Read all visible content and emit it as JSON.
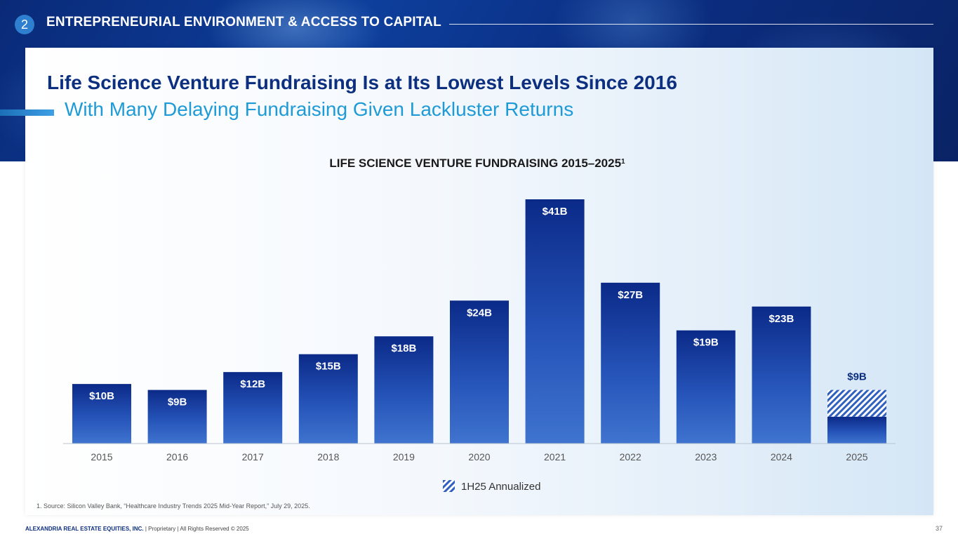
{
  "header": {
    "section_number": "2",
    "section_title": "ENTREPRENEURIAL ENVIRONMENT & ACCESS TO CAPITAL"
  },
  "slide": {
    "title": "Life Science Venture Fundraising Is at Its Lowest Levels Since 2016",
    "subtitle": "With Many Delaying Fundraising Given Lackluster Returns"
  },
  "chart_data": {
    "type": "bar",
    "title": "LIFE SCIENCE VENTURE FUNDRAISING 2015–2025",
    "title_superscript": "1",
    "categories": [
      "2015",
      "2016",
      "2017",
      "2018",
      "2019",
      "2020",
      "2021",
      "2022",
      "2023",
      "2024",
      "2025"
    ],
    "values": [
      10,
      9,
      12,
      15,
      18,
      24,
      41,
      27,
      19,
      23,
      9
    ],
    "actual_values": [
      10,
      9,
      12,
      15,
      18,
      24,
      41,
      27,
      19,
      23,
      4.5
    ],
    "labels": [
      "$10B",
      "$9B",
      "$12B",
      "$15B",
      "$18B",
      "$24B",
      "$41B",
      "$27B",
      "$19B",
      "$23B",
      "$9B"
    ],
    "annualized_index": 10,
    "legend": [
      {
        "name": "1H25 Annualized",
        "style": "hatched"
      }
    ],
    "xlabel": "",
    "ylabel": "",
    "ylim": [
      0,
      41
    ],
    "grid": false,
    "colors": {
      "bar_top": "#0b2a88",
      "bar_bottom": "#3f74cf",
      "hatch": "#2f5fbf",
      "label_outer": "#0d2f80",
      "label_inner": "#ffffff"
    }
  },
  "footnote": "1.   Source: Silicon Valley Bank, “Healthcare Industry Trends 2025 Mid-Year Report,” July 29, 2025.",
  "footer": {
    "company": "ALEXANDRIA REAL ESTATE EQUITIES, INC.",
    "rights": " | Proprietary | All Rights Reserved © 2025",
    "page_number": "37"
  }
}
